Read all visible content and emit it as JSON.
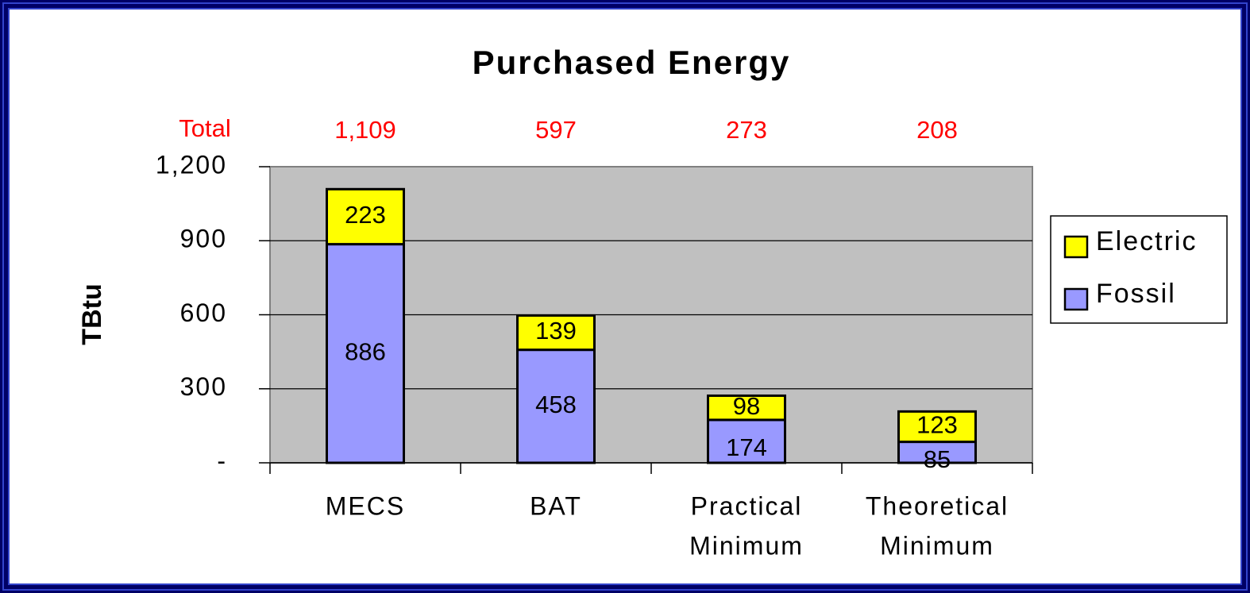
{
  "chart_data": {
    "type": "stacked_bar",
    "title": "Purchased Energy",
    "y_label": "TBtu",
    "categories": [
      [
        "MECS"
      ],
      [
        "BAT"
      ],
      [
        "Practical",
        "Minimum"
      ],
      [
        "Theoretical",
        "Minimum"
      ]
    ],
    "series": [
      {
        "name": "Fossil",
        "color": "#9999ff",
        "values": [
          886,
          458,
          174,
          85
        ]
      },
      {
        "name": "Electric",
        "color": "#ffff00",
        "values": [
          223,
          139,
          98,
          123
        ]
      }
    ],
    "totals_title": "Total",
    "totals": [
      1109,
      597,
      273,
      208
    ],
    "total_labels": [
      "1,109",
      "597",
      "273",
      "208"
    ],
    "ylim": [
      0,
      1200
    ],
    "yticks": [
      {
        "value": 0,
        "label": "-"
      },
      300,
      600,
      900,
      {
        "value": 1200,
        "label": "1,200"
      }
    ],
    "grid": true,
    "legend": "right"
  }
}
